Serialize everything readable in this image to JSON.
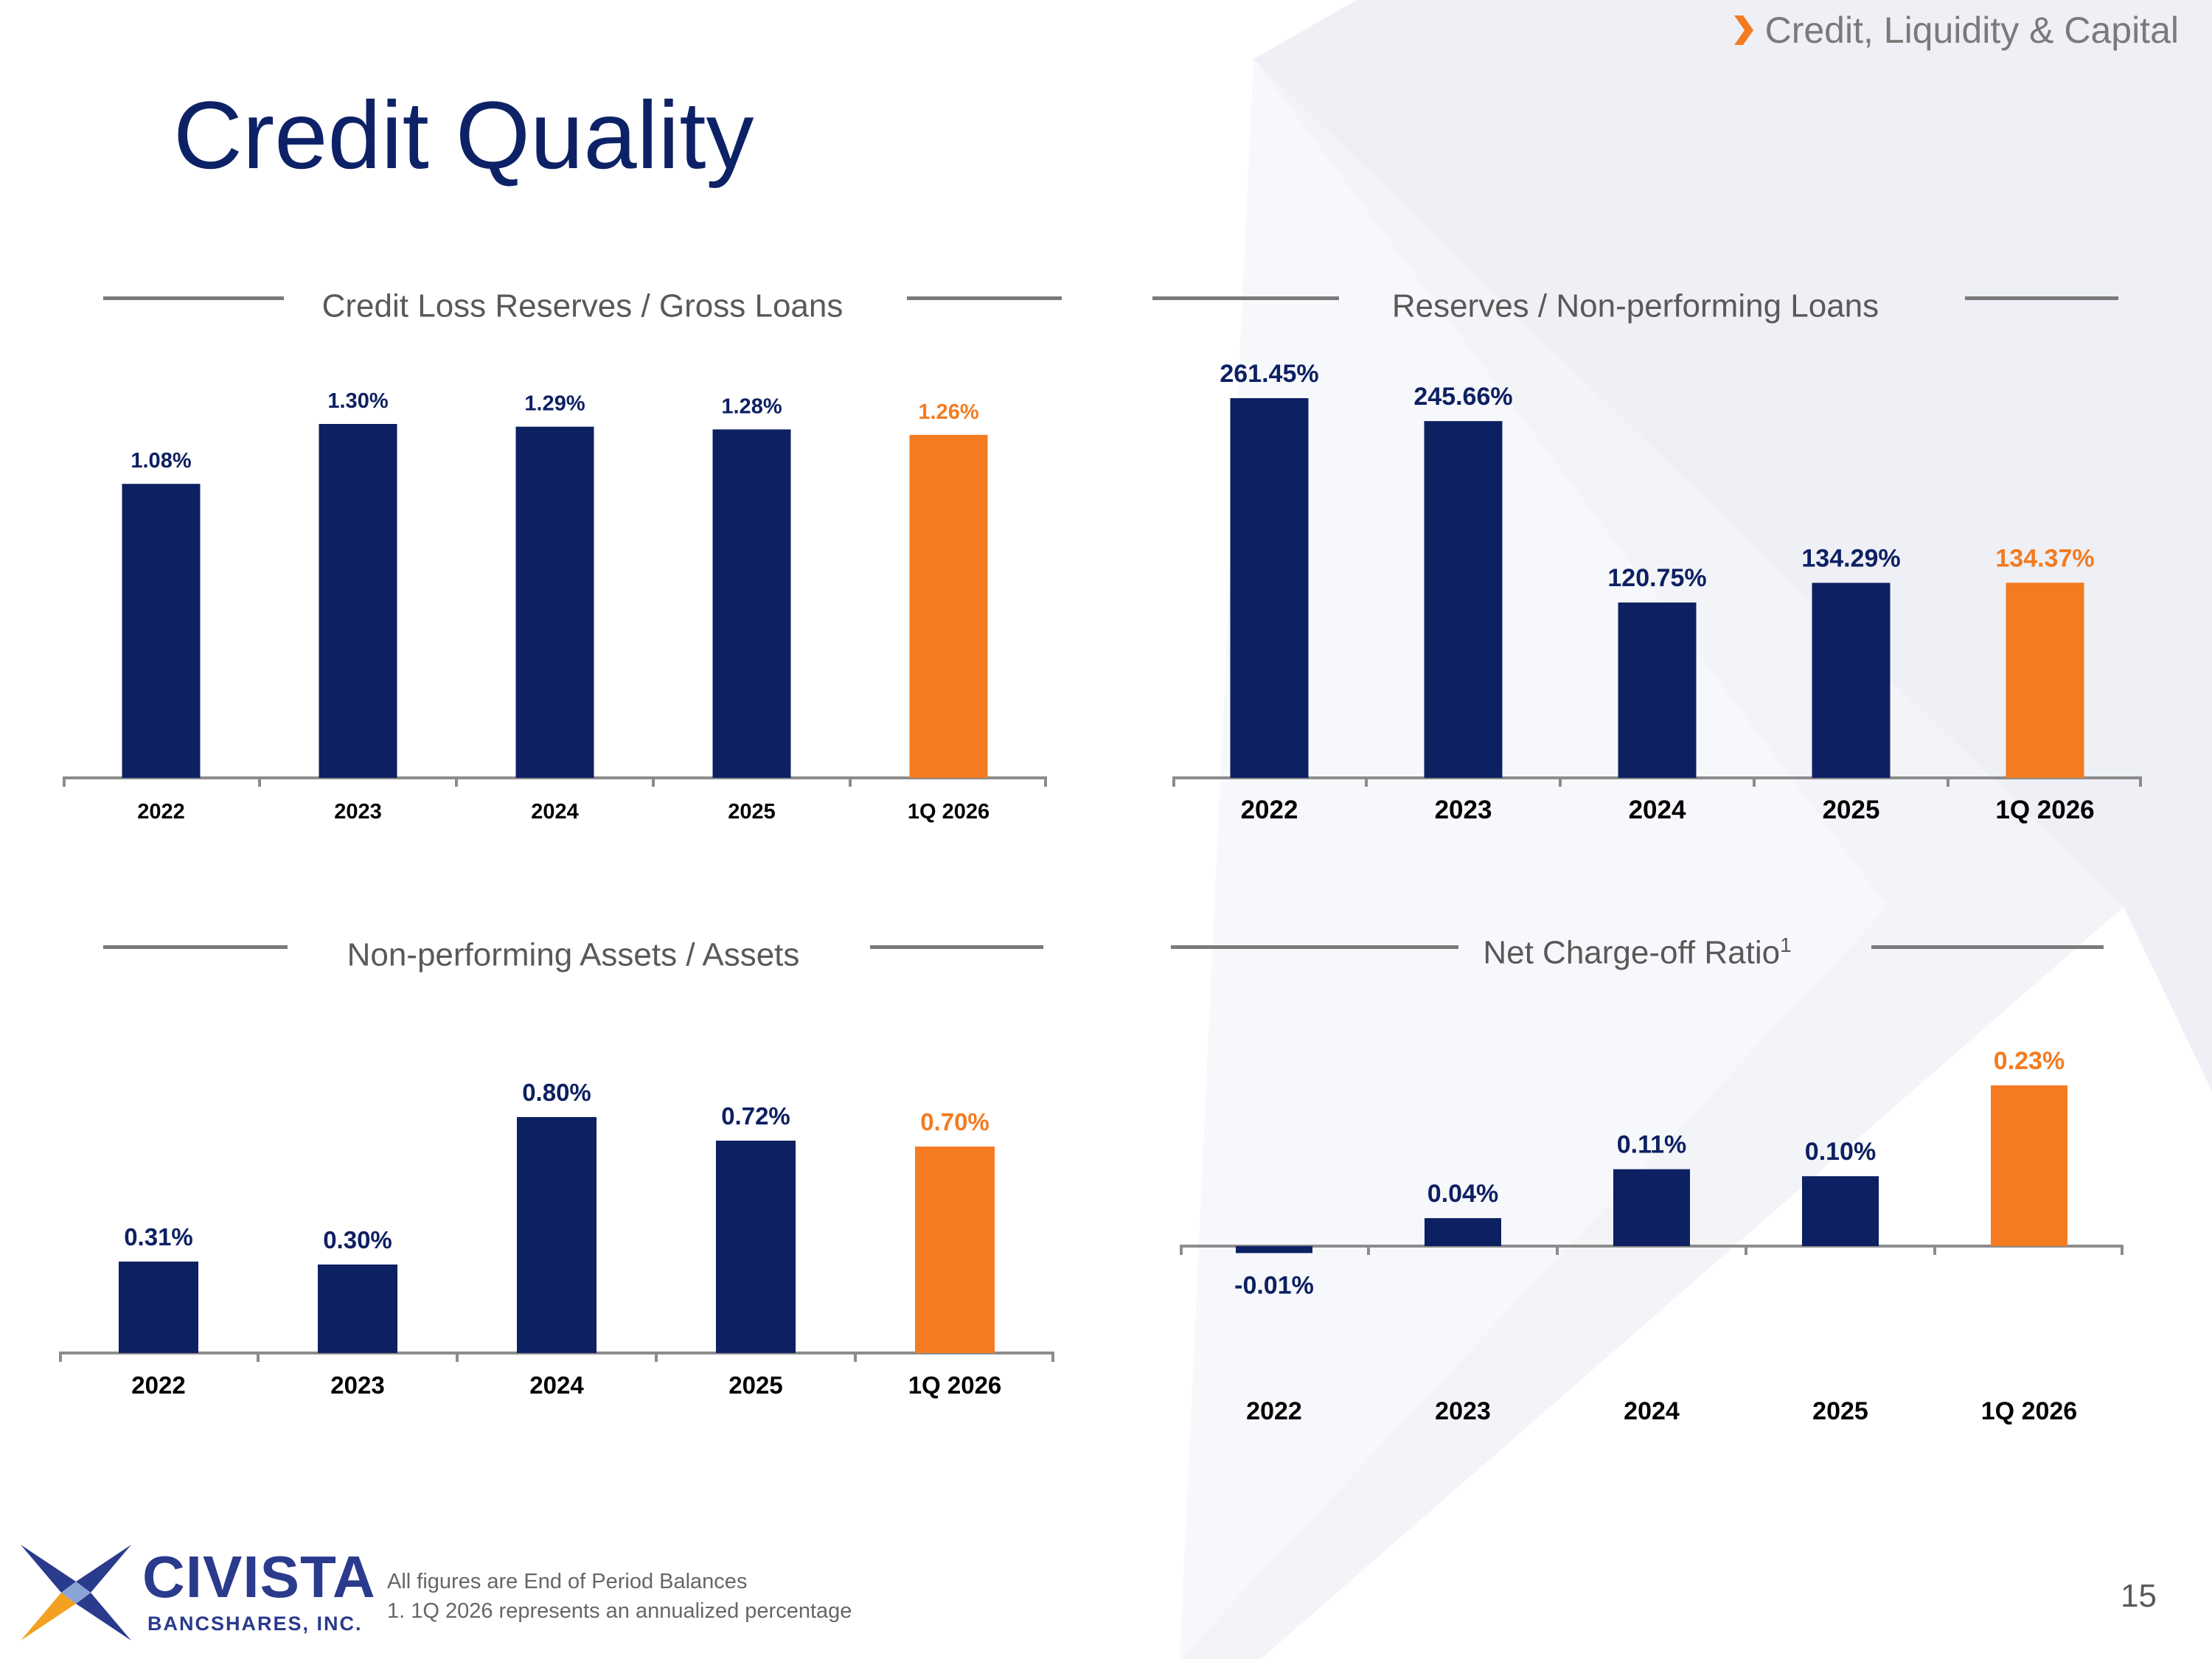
{
  "header": {
    "section_label": "Credit, Liquidity & Capital",
    "title": "Credit Quality"
  },
  "colors": {
    "navy": "#0d2062",
    "orange": "#f47b20",
    "rule": "#7a7a7a"
  },
  "panels": {
    "p1": {
      "title": "Credit Loss Reserves / Gross Loans",
      "footnote_mark": ""
    },
    "p2": {
      "title": "Reserves / Non-performing Loans",
      "footnote_mark": ""
    },
    "p3": {
      "title": "Non-performing Assets / Assets",
      "footnote_mark": ""
    },
    "p4": {
      "title": "Net Charge-off Ratio",
      "footnote_mark": "1"
    }
  },
  "chart_data": [
    {
      "type": "bar",
      "title": "Credit Loss Reserves / Gross Loans",
      "categories": [
        "2022",
        "2023",
        "2024",
        "2025",
        "1Q 2026"
      ],
      "values": [
        1.08,
        1.3,
        1.29,
        1.28,
        1.26
      ],
      "labels": [
        "1.08%",
        "1.30%",
        "1.29%",
        "1.28%",
        "1.26%"
      ],
      "highlight_index": 4,
      "ylim": [
        0,
        1.3
      ],
      "grid": false
    },
    {
      "type": "bar",
      "title": "Reserves / Non-performing Loans",
      "categories": [
        "2022",
        "2023",
        "2024",
        "2025",
        "1Q 2026"
      ],
      "values": [
        261.45,
        245.66,
        120.75,
        134.29,
        134.37
      ],
      "labels": [
        "261.45%",
        "245.66%",
        "120.75%",
        "134.29%",
        "134.37%"
      ],
      "highlight_index": 4,
      "ylim": [
        0,
        261.45
      ],
      "grid": false
    },
    {
      "type": "bar",
      "title": "Non-performing Assets / Assets",
      "categories": [
        "2022",
        "2023",
        "2024",
        "2025",
        "1Q 2026"
      ],
      "values": [
        0.31,
        0.3,
        0.8,
        0.72,
        0.7
      ],
      "labels": [
        "0.31%",
        "0.30%",
        "0.80%",
        "0.72%",
        "0.70%"
      ],
      "highlight_index": 4,
      "ylim": [
        0,
        0.8
      ],
      "grid": false
    },
    {
      "type": "bar",
      "title": "Net Charge-off Ratio",
      "categories": [
        "2022",
        "2023",
        "2024",
        "2025",
        "1Q 2026"
      ],
      "values": [
        -0.01,
        0.04,
        0.11,
        0.1,
        0.23
      ],
      "labels": [
        "-0.01%",
        "0.04%",
        "0.11%",
        "0.10%",
        "0.23%"
      ],
      "highlight_index": 4,
      "ylim": [
        -0.01,
        0.23
      ],
      "grid": false
    }
  ],
  "footnotes": {
    "line1": "All figures are End of Period Balances",
    "line2": "1. 1Q 2026 represents an annualized percentage"
  },
  "page_number": "15",
  "logo": {
    "name": "CIVISTA",
    "subtitle": "BANCSHARES, INC."
  }
}
